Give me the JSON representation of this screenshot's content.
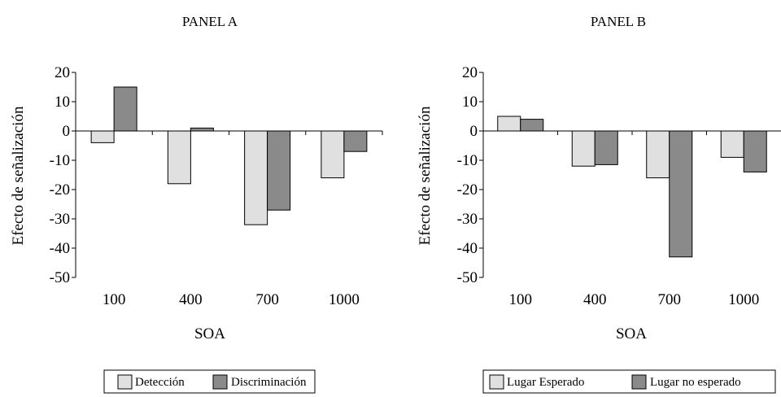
{
  "colors": {
    "light": "#e0e0e0",
    "dark": "#8a8a8a",
    "stroke": "#000000",
    "background": "#ffffff"
  },
  "chart_data": [
    {
      "type": "bar",
      "title": "PANEL A",
      "xlabel": "SOA",
      "ylabel": "Efecto de señalización",
      "categories": [
        "100",
        "400",
        "700",
        "1000"
      ],
      "ylim": [
        -50,
        20
      ],
      "yticks": [
        20,
        10,
        0,
        -10,
        -20,
        -30,
        -40,
        -50
      ],
      "ytick_labels": [
        "20",
        "10",
        "0",
        "-10",
        "-20",
        "-30",
        "-40",
        "-50"
      ],
      "grid": false,
      "legend_position": "bottom",
      "series": [
        {
          "name": "Detección",
          "color": "light",
          "values": [
            -4,
            -18,
            -32,
            -16
          ]
        },
        {
          "name": "Discriminación",
          "color": "dark",
          "values": [
            15,
            1,
            -27,
            -7
          ]
        }
      ]
    },
    {
      "type": "bar",
      "title": "PANEL B",
      "xlabel": "SOA",
      "ylabel": "Efecto de señalización",
      "categories": [
        "100",
        "400",
        "700",
        "1000"
      ],
      "ylim": [
        -50,
        20
      ],
      "yticks": [
        20,
        10,
        0,
        -10,
        -20,
        -30,
        -40,
        -50
      ],
      "ytick_labels": [
        "20",
        "10",
        "0",
        "-10",
        "-20",
        "-30",
        "-40",
        "-50"
      ],
      "grid": false,
      "legend_position": "bottom",
      "series": [
        {
          "name": "Lugar Esperado",
          "color": "light",
          "values": [
            5,
            -12,
            -16,
            -9
          ]
        },
        {
          "name": "Lugar no esperado",
          "color": "dark",
          "values": [
            4,
            -11.5,
            -43,
            -14
          ]
        }
      ]
    }
  ]
}
